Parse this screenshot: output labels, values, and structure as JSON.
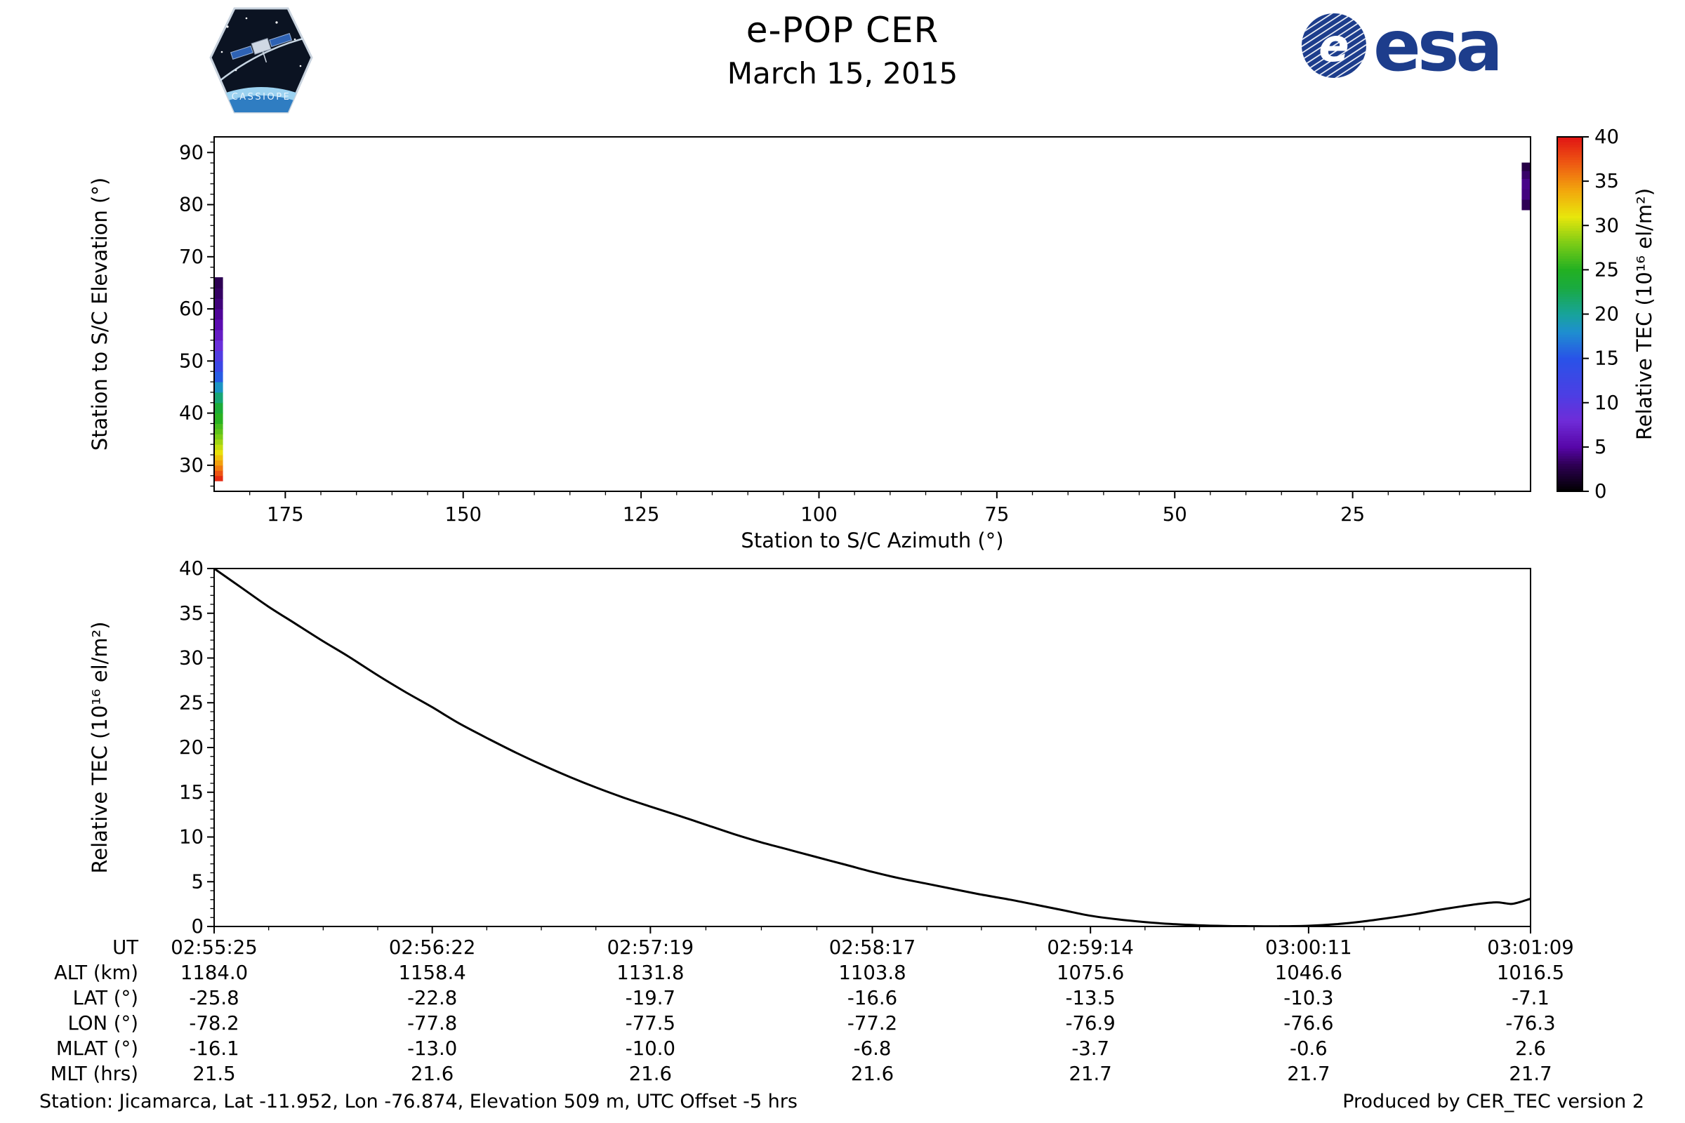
{
  "header": {
    "title": "e-POP CER",
    "date": "March 15, 2015",
    "esa": {
      "text": "esa",
      "e": "e",
      "blue": "#1d3d8c"
    },
    "cassiope": {
      "label": "CASSIOPE"
    }
  },
  "footer": {
    "left": "Station: Jicamarca, Lat -11.952, Lon -76.874, Elevation 509 m, UTC Offset -5 hrs",
    "right": "Produced by CER_TEC version 2"
  },
  "chart_data": [
    {
      "id": "elevation_azimuth",
      "type": "scatter",
      "title": "",
      "xlabel": "Station to S/C Azimuth (°)",
      "ylabel": "Station to S/C Elevation (°)",
      "xlim": [
        185,
        0
      ],
      "ylim": [
        25,
        93
      ],
      "xticks": [
        175,
        150,
        125,
        100,
        75,
        50,
        25
      ],
      "yticks": [
        30,
        40,
        50,
        60,
        70,
        80,
        90
      ],
      "x_minor_step": 5,
      "y_minor_step": 2,
      "grid": false,
      "colorbar": {
        "label": "Relative TEC (10¹⁶ el/m²)",
        "range": [
          0,
          40
        ],
        "ticks": [
          0,
          5,
          10,
          15,
          20,
          25,
          30,
          35,
          40
        ],
        "stops": [
          [
            0,
            "#000000"
          ],
          [
            0.075,
            "#2e0054"
          ],
          [
            0.125,
            "#5706a8"
          ],
          [
            0.2,
            "#6f2cd8"
          ],
          [
            0.275,
            "#4b3fe4"
          ],
          [
            0.375,
            "#2952e8"
          ],
          [
            0.45,
            "#1e8fd0"
          ],
          [
            0.5,
            "#17a39b"
          ],
          [
            0.575,
            "#1aaa40"
          ],
          [
            0.625,
            "#22b022"
          ],
          [
            0.7,
            "#7ccc16"
          ],
          [
            0.775,
            "#e8e60c"
          ],
          [
            0.85,
            "#f2a60d"
          ],
          [
            0.925,
            "#ee5a12"
          ],
          [
            1,
            "#e11414"
          ]
        ]
      },
      "tracks": [
        {
          "name": "ascending-south-edge",
          "azimuth": 184.4,
          "points": [
            [
              27,
              40
            ],
            [
              28,
              38
            ],
            [
              29,
              36.5
            ],
            [
              30,
              35
            ],
            [
              31,
              33.5
            ],
            [
              32,
              32
            ],
            [
              33,
              30.5
            ],
            [
              34,
              29.5
            ],
            [
              35,
              28.5
            ],
            [
              36,
              27.5
            ],
            [
              37,
              26.5
            ],
            [
              38,
              26
            ],
            [
              40,
              24.5
            ],
            [
              42,
              22.5
            ],
            [
              44,
              20
            ],
            [
              46,
              17
            ],
            [
              48,
              14
            ],
            [
              50,
              11.5
            ],
            [
              52,
              9.5
            ],
            [
              54,
              7.5
            ],
            [
              56,
              6
            ],
            [
              58,
              5
            ],
            [
              60,
              4.2
            ],
            [
              62,
              3.6
            ],
            [
              64,
              3.1
            ],
            [
              66,
              2.8
            ]
          ]
        },
        {
          "name": "descending-north-edge",
          "azimuth": 0.6,
          "points": [
            [
              79,
              2.5
            ],
            [
              81,
              3.5
            ],
            [
              83,
              4.5
            ],
            [
              85,
              4
            ],
            [
              86.5,
              3
            ],
            [
              88,
              2
            ]
          ]
        }
      ]
    },
    {
      "id": "tec_time",
      "type": "line",
      "title": "",
      "xlabel": "",
      "ylabel": "Relative TEC (10¹⁶ el/m²)",
      "ylim": [
        0,
        40
      ],
      "yticks": [
        0,
        5,
        10,
        15,
        20,
        25,
        30,
        35,
        40
      ],
      "y_minor_step": 1,
      "grid": false,
      "x_tick_seconds": [
        0,
        57,
        114,
        172,
        229,
        286,
        344
      ],
      "x_tick_labels": [
        "02:55:25",
        "02:56:22",
        "02:57:19",
        "02:58:17",
        "02:59:14",
        "03:00:11",
        "03:01:09"
      ],
      "series": [
        {
          "name": "Relative TEC",
          "color": "#000000",
          "points": [
            [
              0,
              40.0
            ],
            [
              7,
              37.9
            ],
            [
              14,
              35.8
            ],
            [
              21,
              33.9
            ],
            [
              28,
              32.0
            ],
            [
              35,
              30.2
            ],
            [
              43,
              28.0
            ],
            [
              50,
              26.2
            ],
            [
              57,
              24.5
            ],
            [
              64,
              22.7
            ],
            [
              72,
              20.9
            ],
            [
              79,
              19.4
            ],
            [
              86,
              18.0
            ],
            [
              93,
              16.7
            ],
            [
              100,
              15.5
            ],
            [
              107,
              14.4
            ],
            [
              114,
              13.4
            ],
            [
              122,
              12.3
            ],
            [
              129,
              11.3
            ],
            [
              136,
              10.3
            ],
            [
              143,
              9.4
            ],
            [
              150,
              8.6
            ],
            [
              157,
              7.8
            ],
            [
              165,
              6.9
            ],
            [
              172,
              6.1
            ],
            [
              179,
              5.4
            ],
            [
              186,
              4.8
            ],
            [
              193,
              4.2
            ],
            [
              200,
              3.6
            ],
            [
              208,
              3.0
            ],
            [
              215,
              2.4
            ],
            [
              222,
              1.8
            ],
            [
              229,
              1.2
            ],
            [
              236,
              0.8
            ],
            [
              243,
              0.5
            ],
            [
              250,
              0.28
            ],
            [
              257,
              0.14
            ],
            [
              264,
              0.06
            ],
            [
              271,
              0.03
            ],
            [
              278,
              0.02
            ],
            [
              286,
              0.08
            ],
            [
              293,
              0.25
            ],
            [
              300,
              0.55
            ],
            [
              307,
              0.95
            ],
            [
              314,
              1.4
            ],
            [
              320,
              1.85
            ],
            [
              326,
              2.25
            ],
            [
              331,
              2.55
            ],
            [
              335,
              2.7
            ],
            [
              337,
              2.62
            ],
            [
              339,
              2.52
            ],
            [
              341,
              2.7
            ],
            [
              344,
              3.1
            ]
          ]
        }
      ]
    }
  ],
  "table": {
    "rows": [
      {
        "label": "UT",
        "values": [
          "02:55:25",
          "02:56:22",
          "02:57:19",
          "02:58:17",
          "02:59:14",
          "03:00:11",
          "03:01:09"
        ]
      },
      {
        "label": "ALT (km)",
        "values": [
          "1184.0",
          "1158.4",
          "1131.8",
          "1103.8",
          "1075.6",
          "1046.6",
          "1016.5"
        ]
      },
      {
        "label": "LAT (°)",
        "values": [
          "-25.8",
          "-22.8",
          "-19.7",
          "-16.6",
          "-13.5",
          "-10.3",
          "-7.1"
        ]
      },
      {
        "label": "LON (°)",
        "values": [
          "-78.2",
          "-77.8",
          "-77.5",
          "-77.2",
          "-76.9",
          "-76.6",
          "-76.3"
        ]
      },
      {
        "label": "MLAT (°)",
        "values": [
          "-16.1",
          "-13.0",
          "-10.0",
          "-6.8",
          "-3.7",
          "-0.6",
          "2.6"
        ]
      },
      {
        "label": "MLT (hrs)",
        "values": [
          "21.5",
          "21.6",
          "21.6",
          "21.6",
          "21.7",
          "21.7",
          "21.7"
        ]
      }
    ]
  }
}
